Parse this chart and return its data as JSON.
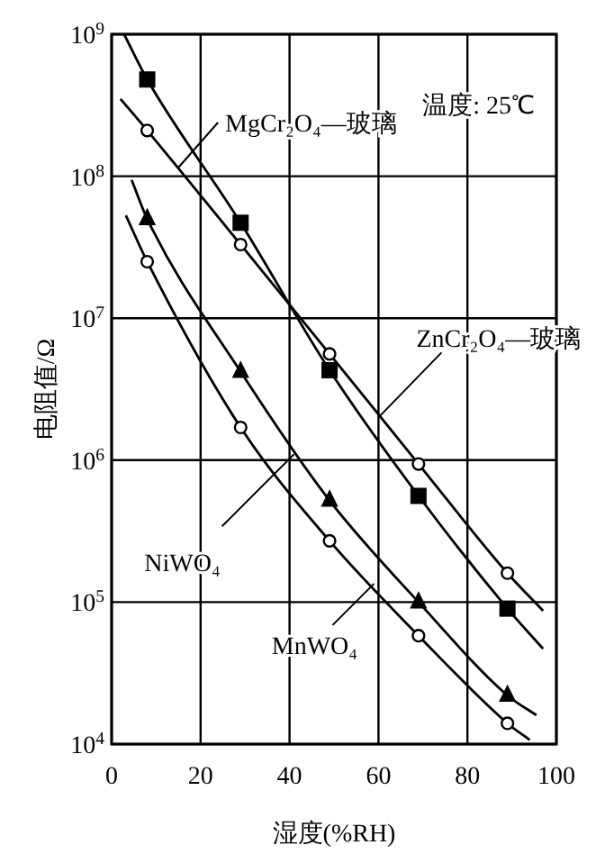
{
  "chart_data": {
    "type": "scatter",
    "xlabel": "湿度(%RH)",
    "ylabel": "电阻值/Ω",
    "xlim": [
      0,
      100
    ],
    "xticks": [
      0,
      20,
      40,
      60,
      80,
      100
    ],
    "ylim": [
      10000,
      1000000000
    ],
    "yticks": [
      {
        "value": 10000,
        "label": "10$^{4}$"
      },
      {
        "value": 100000,
        "label": "10$^{5}$"
      },
      {
        "value": 1000000,
        "label": "10$^{6}$"
      },
      {
        "value": 10000000,
        "label": "10$^{7}$"
      },
      {
        "value": 100000000,
        "label": "10$^{8}$"
      },
      {
        "value": 1000000000,
        "label": "10$^{9}$"
      }
    ],
    "log": "y",
    "grid": true,
    "series": [
      {
        "type": "scatter",
        "marker": "square",
        "color": "#000000",
        "x": [
          8,
          29,
          49,
          69,
          89
        ],
        "values": [
          480000000,
          47000000,
          4300000,
          560000,
          90000
        ]
      },
      {
        "type": "scatter",
        "marker": "circle",
        "color": "#000000",
        "x": [
          8,
          29,
          49,
          69,
          89
        ],
        "values": [
          210000000,
          33000000,
          5600000,
          940000,
          160000
        ]
      },
      {
        "type": "scatter",
        "marker": "triangle",
        "color": "#000000",
        "x": [
          8,
          29,
          49,
          69,
          89
        ],
        "values": [
          50000000,
          4200000,
          520000,
          100000,
          22000
        ]
      },
      {
        "type": "scatter",
        "marker": "circle",
        "color": "#000000",
        "x": [
          8,
          29,
          49,
          69,
          89
        ],
        "values": [
          25000000,
          1700000,
          270000,
          58000,
          14000
        ]
      },
      {
        "type": "line",
        "marker": "none",
        "color": "#000000",
        "x": [
          2.8,
          8,
          29,
          49,
          69,
          89,
          97
        ],
        "values": [
          1000000000,
          480000000,
          47000000,
          4300000,
          560000,
          90000,
          47000
        ]
      },
      {
        "type": "line",
        "marker": "none",
        "color": "#000000",
        "x": [
          2,
          8,
          29,
          49,
          69,
          89,
          97
        ],
        "values": [
          350000000,
          210000000,
          33000000,
          5600000,
          940000,
          160000,
          87000
        ]
      },
      {
        "type": "line",
        "marker": "none",
        "color": "#000000",
        "x": [
          4.5,
          8,
          29,
          49,
          69,
          89,
          95.5
        ],
        "values": [
          94000000,
          50000000,
          4200000,
          520000,
          100000,
          22000,
          16000
        ]
      },
      {
        "type": "line",
        "marker": "none",
        "color": "#000000",
        "x": [
          3.2,
          8,
          29,
          49,
          69,
          89,
          94
        ],
        "values": [
          53000000,
          25000000,
          1700000,
          270000,
          58000,
          14000,
          10700
        ]
      }
    ],
    "annotations": [
      "温度: 25℃",
      {
        "text": "MgCr₂O₄—玻璃",
        "x": 15,
        "y": 115000000
      },
      {
        "text": "ZnCr₂O₄—玻璃",
        "x": 60,
        "y": 2000000
      },
      {
        "text": "NiWO₄",
        "x": 41,
        "y": 1100000
      },
      {
        "text": "MnWO₄",
        "x": 59,
        "y": 135000
      }
    ]
  }
}
